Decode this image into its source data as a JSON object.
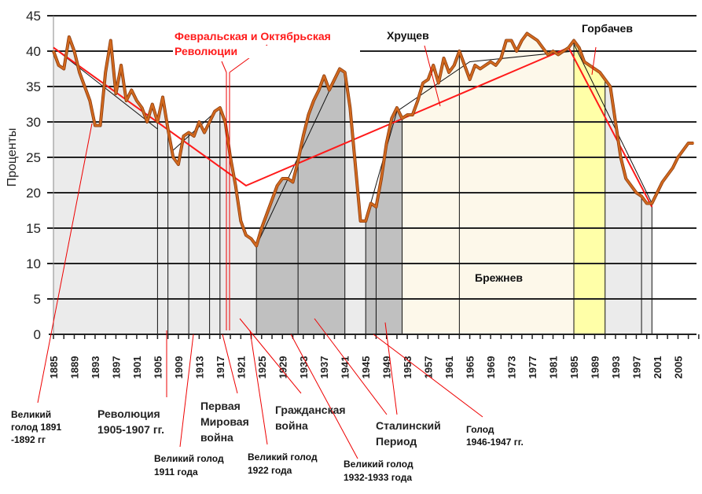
{
  "chart_data": {
    "type": "line",
    "ylabel": "Проценты",
    "ylim": [
      0,
      45
    ],
    "yticks": [
      0,
      5,
      10,
      15,
      20,
      25,
      30,
      35,
      40,
      45
    ],
    "xlim": [
      1885,
      2008
    ],
    "xticks": [
      1885,
      1889,
      1893,
      1897,
      1901,
      1905,
      1909,
      1913,
      1917,
      1921,
      1925,
      1929,
      1933,
      1937,
      1941,
      1945,
      1949,
      1953,
      1957,
      1961,
      1965,
      1969,
      1973,
      1977,
      1981,
      1985,
      1989,
      1993,
      1997,
      2001,
      2005
    ],
    "grid": true,
    "series": [
      {
        "color": "#d2691e",
        "x": [
          1885,
          1886,
          1887,
          1888,
          1889,
          1890,
          1891,
          1892,
          1893,
          1894,
          1895,
          1896,
          1897,
          1898,
          1899,
          1900,
          1901,
          1902,
          1903,
          1904,
          1905,
          1906,
          1907,
          1908,
          1909,
          1910,
          1911,
          1912,
          1913,
          1914,
          1915,
          1916,
          1917,
          1918,
          1919,
          1920,
          1921,
          1922,
          1923,
          1924,
          1925,
          1926,
          1927,
          1928,
          1929,
          1930,
          1931,
          1932,
          1933,
          1934,
          1935,
          1936,
          1937,
          1938,
          1939,
          1940,
          1941,
          1942,
          1943,
          1944,
          1945,
          1946,
          1947,
          1948,
          1949,
          1950,
          1951,
          1952,
          1953,
          1954,
          1955,
          1956,
          1957,
          1958,
          1959,
          1960,
          1961,
          1962,
          1963,
          1964,
          1965,
          1966,
          1967,
          1968,
          1969,
          1970,
          1971,
          1972,
          1973,
          1974,
          1975,
          1976,
          1977,
          1978,
          1979,
          1980,
          1981,
          1982,
          1983,
          1984,
          1985,
          1986,
          1987,
          1988,
          1989,
          1990,
          1991,
          1992,
          1993,
          1994,
          1995,
          1996,
          1997,
          1998,
          1999,
          2000,
          2001,
          2002,
          2003,
          2004,
          2005,
          2006,
          2007,
          2008
        ],
        "y": [
          40,
          38,
          37.5,
          42,
          40,
          37,
          35,
          33,
          29.5,
          29.5,
          37,
          41.5,
          34,
          38,
          33,
          34.5,
          33,
          32,
          30,
          32.5,
          30,
          33.5,
          29,
          25,
          24,
          28,
          28.5,
          28,
          30,
          28.5,
          30,
          31.5,
          32,
          30,
          25,
          21,
          16,
          14,
          13.5,
          12.5,
          15,
          17,
          19,
          21,
          22,
          22,
          21.5,
          24.5,
          28,
          31,
          33,
          34.5,
          36.5,
          34.5,
          36,
          37.5,
          37,
          32,
          24,
          16,
          16,
          18.5,
          18,
          22,
          27,
          30.5,
          32,
          30.5,
          31,
          31,
          33,
          35.5,
          36,
          38,
          35.5,
          39,
          37,
          38,
          40,
          38,
          36,
          38,
          37.5,
          38,
          38.5,
          38,
          39,
          41.5,
          41.5,
          40,
          41.5,
          42.5,
          42,
          41.5,
          40.5,
          39.5,
          40,
          39.5,
          40,
          40.5,
          41.5,
          40.5,
          38.5,
          38,
          37.5,
          37,
          36,
          35,
          30,
          25,
          22,
          21,
          20,
          19.5,
          18.5,
          18.5,
          20,
          21.5,
          22.5,
          23.5,
          25,
          26,
          27,
          27
        ]
      }
    ],
    "trend_line": {
      "color": "#ff1a1a",
      "x": [
        1885,
        1922,
        1984,
        2000
      ],
      "y": [
        40.5,
        21,
        40.5,
        18
      ]
    },
    "local_trends": [
      {
        "x": [
          1885,
          1905
        ],
        "y": [
          40.5,
          29
        ]
      },
      {
        "x": [
          1908,
          1917
        ],
        "y": [
          26,
          32
        ]
      },
      {
        "x": [
          1924,
          1940
        ],
        "y": [
          12.5,
          37.5
        ]
      },
      {
        "x": [
          1945,
          1951
        ],
        "y": [
          16,
          31.5
        ]
      },
      {
        "x": [
          1951,
          1965,
          1985
        ],
        "y": [
          31.5,
          38.5,
          40
        ]
      },
      {
        "x": [
          1985,
          2000
        ],
        "y": [
          41,
          18.5
        ]
      }
    ],
    "bands": [
      {
        "from": 1885,
        "to": 1924,
        "color": "#ebebeb"
      },
      {
        "from": 1924,
        "to": 1941,
        "color": "#c0c0c0"
      },
      {
        "from": 1941,
        "to": 1945,
        "color": "#ebebeb"
      },
      {
        "from": 1945,
        "to": 1952,
        "color": "#c0c0c0"
      },
      {
        "from": 1952,
        "to": 1985,
        "color": "#fdf8ea"
      },
      {
        "from": 1985,
        "to": 1991,
        "color": "#ffffa8"
      },
      {
        "from": 1991,
        "to": 2000,
        "color": "#ebebeb"
      }
    ],
    "annotations": {
      "revolutions": [
        "Февральская и Октябрьская",
        "Революции"
      ],
      "khrushchev": "Хрущев",
      "gorbachev": "Горбачев",
      "brezhnev": "Брежнев",
      "famine_1891": [
        "Великий",
        "голод 1891",
        "-1892 гг"
      ],
      "revolution_1905": [
        "Революция",
        "1905-1907 гг."
      ],
      "ww1": [
        "Первая",
        "Мировая",
        "война"
      ],
      "civil_war": [
        "Гражданская",
        "война"
      ],
      "famine_1911": [
        "Великий голод",
        "1911 года"
      ],
      "famine_1922": [
        "Великий голод",
        "1922 года"
      ],
      "famine_1932": [
        "Великий голод",
        "1932-1933 года"
      ],
      "stalin": [
        "Сталинский",
        "Период"
      ],
      "famine_1946": [
        "Голод",
        "1946-1947 гг."
      ]
    }
  }
}
